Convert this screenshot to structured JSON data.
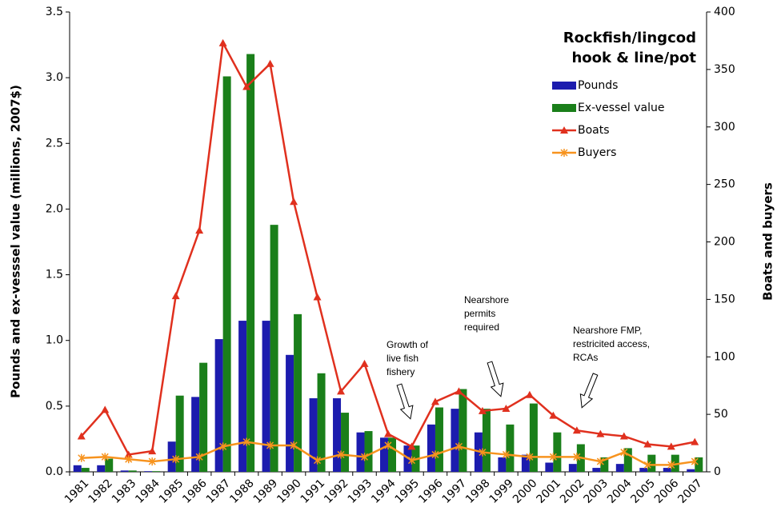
{
  "chart_data": {
    "type": "bar-line",
    "title": [
      "Rockfish/lingcod",
      "hook & line/pot"
    ],
    "y_label": "Pounds and ex-vesssel value (millions, 2007$)",
    "y2_label": "Boats and buyers",
    "categories": [
      "1981",
      "1982",
      "1983",
      "1984",
      "1985",
      "1986",
      "1987",
      "1988",
      "1989",
      "1990",
      "1991",
      "1992",
      "1993",
      "1994",
      "1995",
      "1996",
      "1997",
      "1998",
      "1999",
      "2000",
      "2001",
      "2002",
      "2003",
      "2004",
      "2005",
      "2006",
      "2007"
    ],
    "series": [
      {
        "name": "Pounds",
        "type": "bar",
        "color": "#1c1cae",
        "values": [
          0.05,
          0.05,
          0.01,
          0.005,
          0.23,
          0.57,
          1.01,
          1.15,
          1.15,
          0.89,
          0.56,
          0.56,
          0.3,
          0.26,
          0.2,
          0.36,
          0.48,
          0.3,
          0.11,
          0.13,
          0.07,
          0.06,
          0.03,
          0.06,
          0.03,
          0.03,
          0.02
        ]
      },
      {
        "name": "Ex-vessel value",
        "type": "bar",
        "color": "#1a7f1a",
        "values": [
          0.03,
          0.1,
          0.01,
          0.005,
          0.58,
          0.83,
          3.01,
          3.18,
          1.88,
          1.2,
          0.75,
          0.45,
          0.31,
          0.26,
          0.2,
          0.49,
          0.63,
          0.48,
          0.36,
          0.52,
          0.3,
          0.21,
          0.11,
          0.18,
          0.13,
          0.13,
          0.11
        ]
      },
      {
        "name": "Boats",
        "type": "line",
        "axis": "y2",
        "marker": "triangle",
        "color": "#e0301e",
        "values": [
          31,
          54,
          15,
          18,
          153,
          210,
          373,
          335,
          355,
          235,
          152,
          70,
          94,
          33,
          22,
          61,
          70,
          53,
          55,
          67,
          49,
          36,
          33,
          31,
          24,
          22,
          26
        ]
      },
      {
        "name": "Buyers",
        "type": "line",
        "axis": "y2",
        "marker": "star",
        "color": "#f7931e",
        "values": [
          12,
          13,
          11,
          9,
          11,
          13,
          22,
          26,
          23,
          23,
          10,
          15,
          13,
          23,
          10,
          15,
          22,
          17,
          15,
          13,
          13,
          13,
          9,
          17,
          6,
          6,
          9
        ]
      }
    ],
    "ylim": [
      0,
      3.5
    ],
    "yticks": [
      {
        "value": 0,
        "label": "0.0"
      },
      0.5,
      {
        "value": 1,
        "label": "1.0"
      },
      1.5,
      {
        "value": 2,
        "label": "2.0"
      },
      2.5,
      {
        "value": 3,
        "label": "3.0"
      },
      3.5
    ],
    "y2lim": [
      0,
      400
    ],
    "y2ticks": [
      0,
      50,
      100,
      150,
      200,
      250,
      300,
      350,
      400
    ],
    "grid": false,
    "legend": "upper right",
    "annotations": [
      {
        "lines": [
          "Growth of",
          "live fish",
          "fishery"
        ]
      },
      {
        "lines": [
          "Nearshore",
          "permits",
          "required"
        ]
      },
      {
        "lines": [
          "Nearshore FMP,",
          "restricited access,",
          "RCAs"
        ]
      }
    ]
  }
}
